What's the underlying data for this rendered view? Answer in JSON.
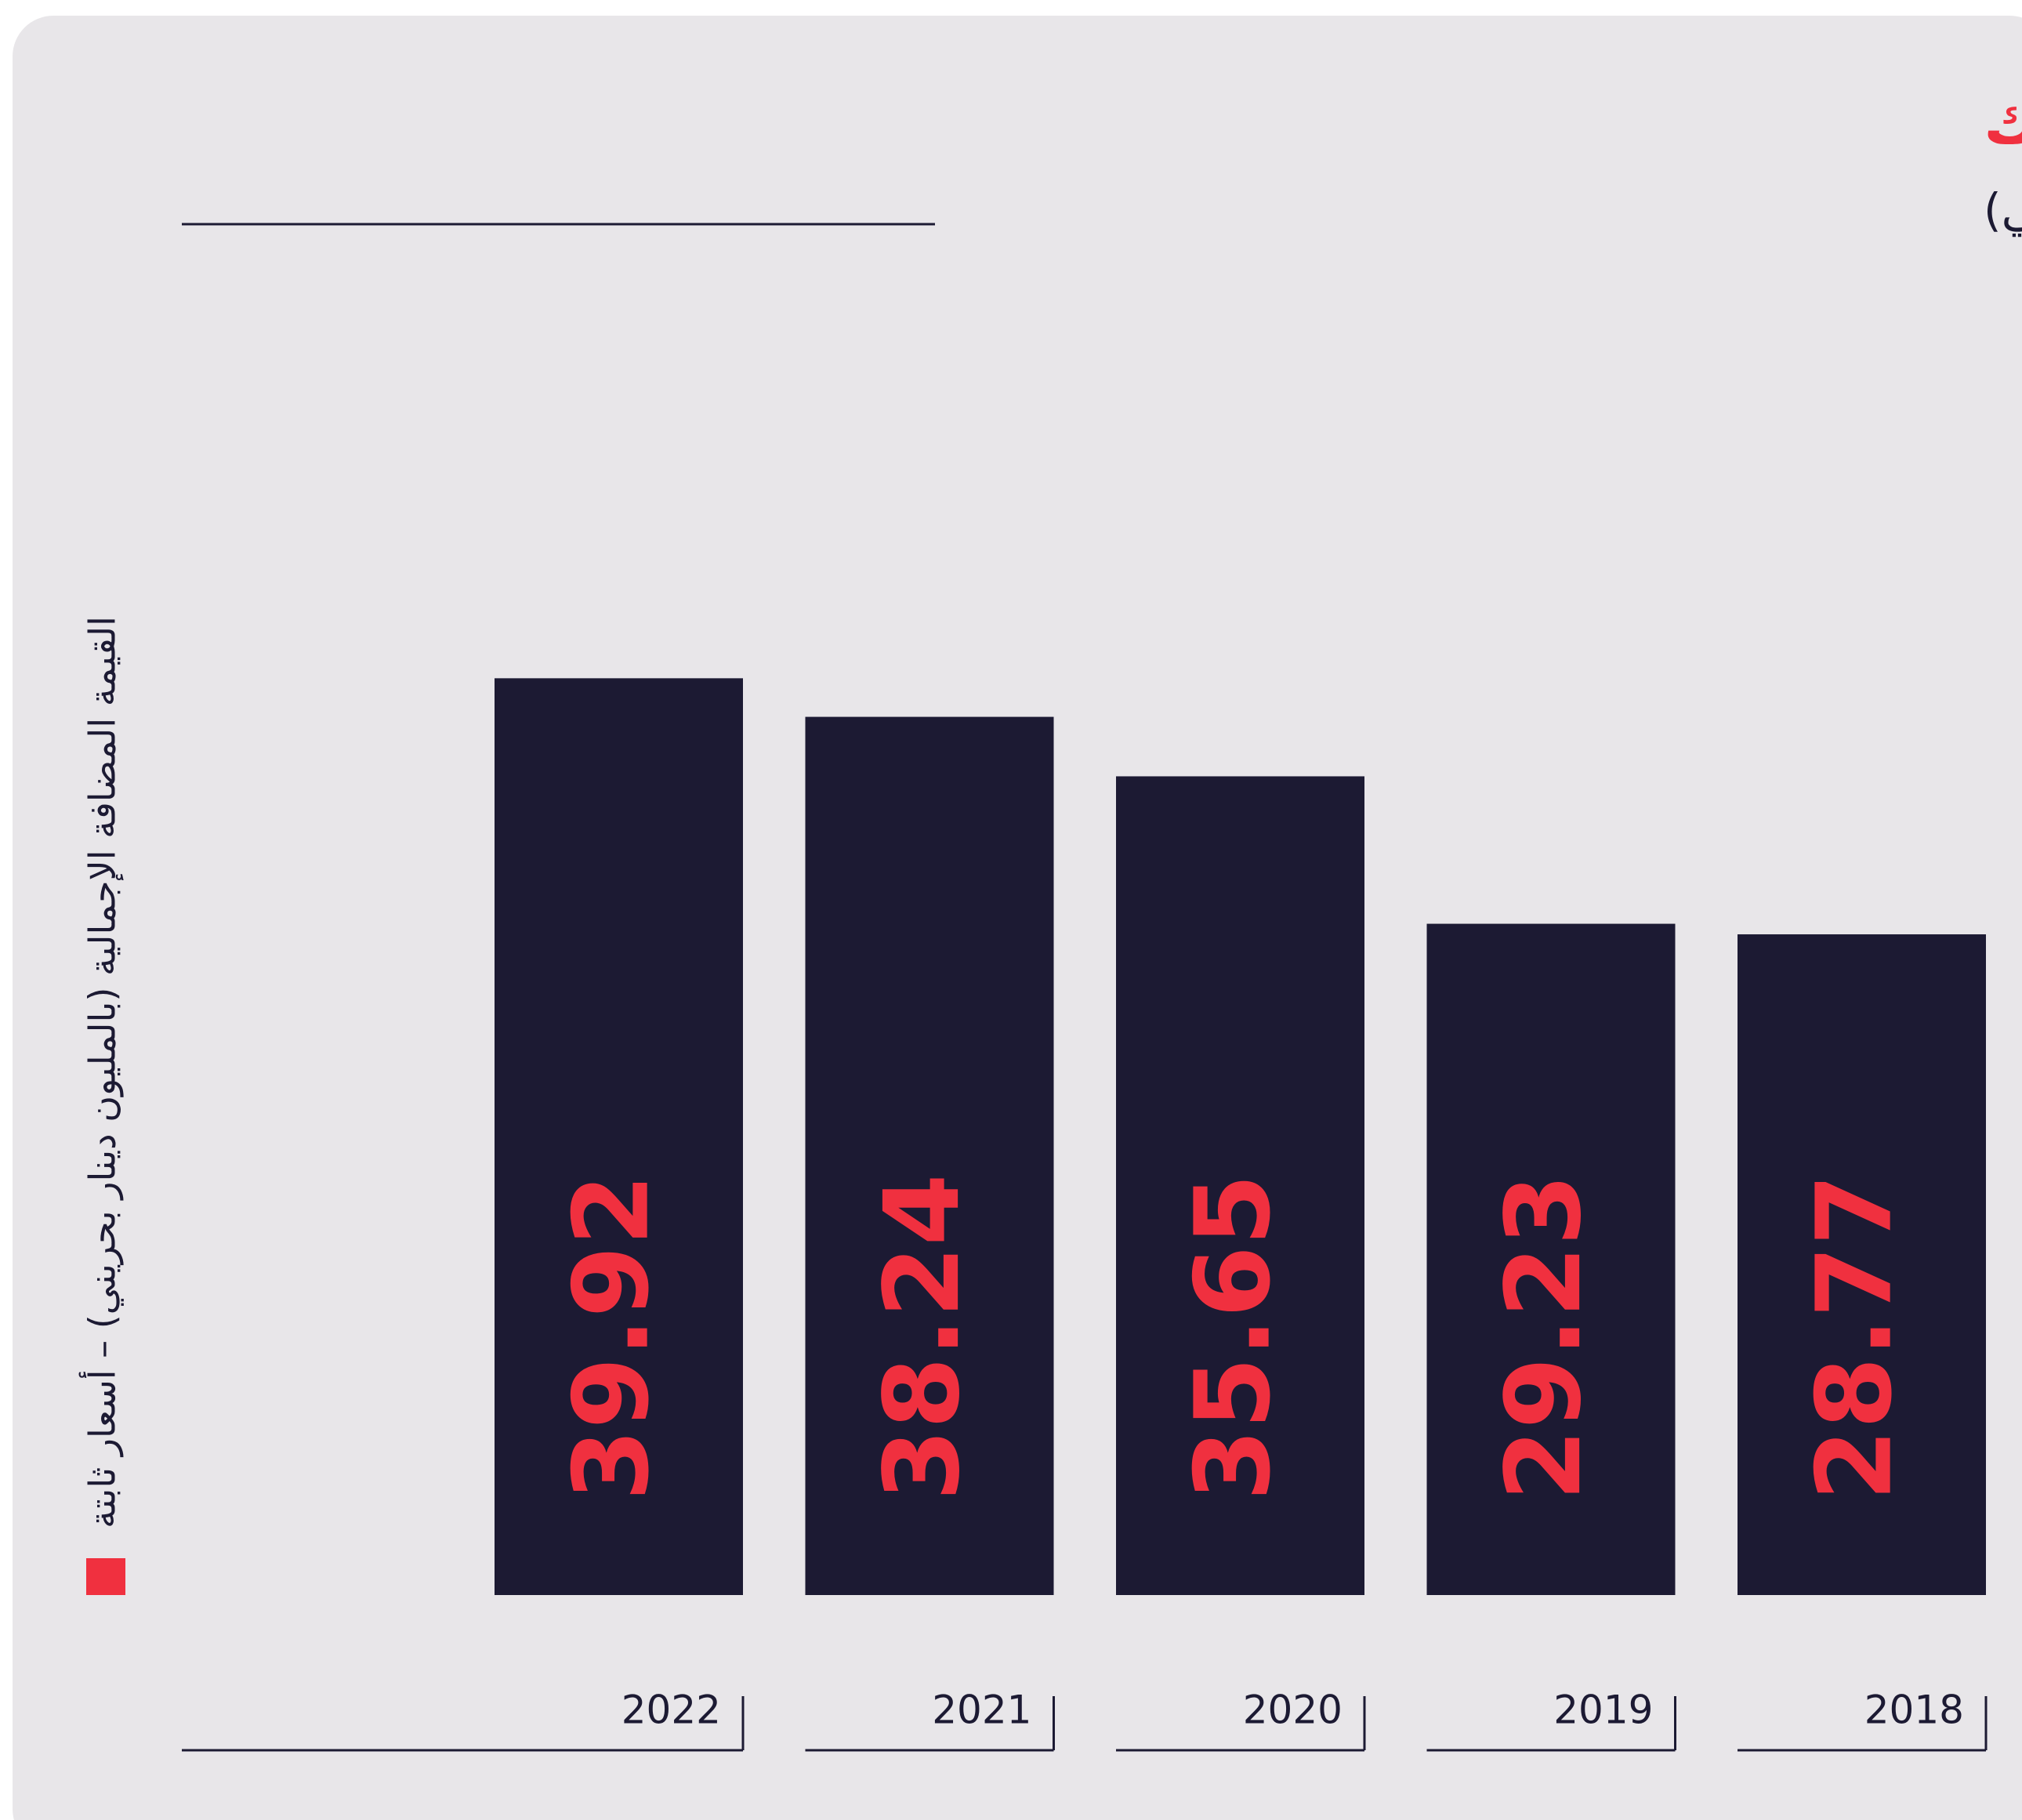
{
  "chart_data": {
    "type": "bar",
    "title": "قطاع الزراعة وصيد الأسماك",
    "subtitle": "القيمة المضافة الإجمالية* (مليون دينار بحريني)",
    "categories": [
      "2018",
      "2019",
      "2020",
      "2021",
      "2022"
    ],
    "series": [
      {
        "name": "القيمة المضافة الإجمالية (بالمليون دينار بحريني) – أسعار ثابتة",
        "color": "#1c1a33",
        "values": [
          28.77,
          29.23,
          35.65,
          38.24,
          39.92
        ]
      }
    ],
    "label_color": "#f0303f",
    "legend_color": "#f0303f",
    "ylim": [
      0,
      50
    ]
  }
}
